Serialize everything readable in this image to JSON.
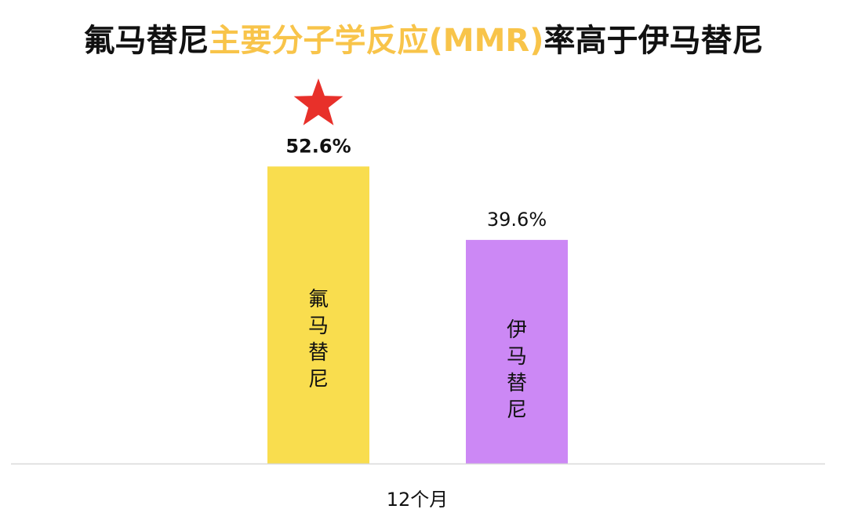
{
  "title": {
    "part1": "氟马替尼",
    "part2": "主要分子学反应(MMR)",
    "part3": "率高于伊马替尼",
    "part1_color": "#111111",
    "part2_color": "#F8C44A",
    "part3_color": "#111111"
  },
  "chart_data": {
    "type": "bar",
    "categories": [
      "12个月"
    ],
    "series": [
      {
        "name": "氟马替尼",
        "values": [
          52.6
        ],
        "color": "#F9DD4E",
        "label": "52.6%",
        "highlight": true
      },
      {
        "name": "伊马替尼",
        "values": [
          39.6
        ],
        "color": "#CC88F5",
        "label": "39.6%",
        "highlight": false
      }
    ],
    "xlabel": "",
    "ylabel": "",
    "ylim": [
      0,
      100
    ],
    "grid": false,
    "legend": "none",
    "star_color": "#E8302A",
    "star_icon": "star-icon"
  }
}
